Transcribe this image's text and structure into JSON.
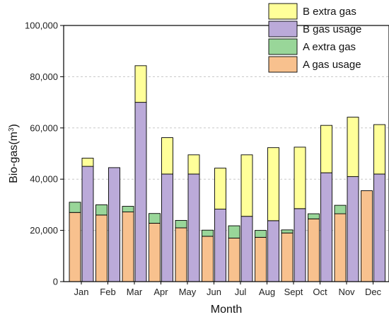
{
  "chart_data": {
    "type": "bar",
    "stacked": true,
    "categories": [
      "Jan",
      "Feb",
      "Mar",
      "Apr",
      "May",
      "Jun",
      "Jul",
      "Aug",
      "Sept",
      "Oct",
      "Nov",
      "Dec"
    ],
    "xlabel": "Month",
    "ylabel_main": "Bio-gas(m",
    "ylabel_sup": "3",
    "ylabel_end": ")",
    "ylim": [
      0,
      100000
    ],
    "yticks": [
      0,
      20000,
      40000,
      60000,
      80000,
      100000
    ],
    "ytick_labels": [
      "0",
      "20,000",
      "40,000",
      "60,000",
      "80,000",
      "100,000"
    ],
    "grid": "horizontal dashed",
    "legend_position": "top-right",
    "legend": [
      {
        "name": "B extra gas",
        "color": "#ffff99"
      },
      {
        "name": "B gas usage",
        "color": "#bbaad9"
      },
      {
        "name": "A extra gas",
        "color": "#99d699"
      },
      {
        "name": "A gas usage",
        "color": "#f8c18e"
      }
    ],
    "groups": [
      {
        "name": "A",
        "position": "left",
        "series": [
          {
            "name": "A gas usage",
            "color": "#f8c18e",
            "values": [
              27000,
              26000,
              27200,
              22800,
              21000,
              17700,
              17000,
              17300,
              19000,
              24500,
              26500,
              35500
            ]
          },
          {
            "name": "A extra gas",
            "color": "#99d699",
            "values": [
              4000,
              4000,
              2200,
              3800,
              2900,
              2400,
              4800,
              2700,
              1200,
              2000,
              3300,
              0
            ]
          }
        ]
      },
      {
        "name": "B",
        "position": "right",
        "series": [
          {
            "name": "B gas usage",
            "color": "#bbaad9",
            "values": [
              45000,
              44500,
              70000,
              42000,
              42000,
              28300,
              25500,
              23800,
              28500,
              42500,
              41000,
              42000
            ]
          },
          {
            "name": "B extra gas",
            "color": "#ffff99",
            "values": [
              3200,
              0,
              14300,
              14200,
              7500,
              16000,
              24000,
              28500,
              24000,
              18500,
              23200,
              19300
            ]
          }
        ]
      }
    ]
  }
}
